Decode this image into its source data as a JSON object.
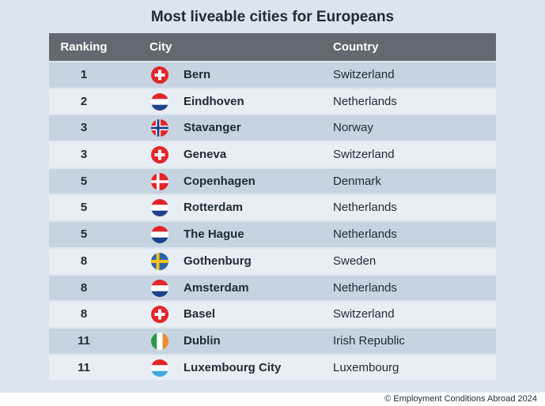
{
  "title": "Most liveable cities for Europeans",
  "headers": {
    "ranking": "Ranking",
    "city": "City",
    "country": "Country"
  },
  "rows": [
    {
      "rank": "1",
      "city": "Bern",
      "country": "Switzerland",
      "flag": "switzerland-flag-icon"
    },
    {
      "rank": "2",
      "city": "Eindhoven",
      "country": "Netherlands",
      "flag": "netherlands-flag-icon"
    },
    {
      "rank": "3",
      "city": "Stavanger",
      "country": "Norway",
      "flag": "norway-flag-icon"
    },
    {
      "rank": "3",
      "city": "Geneva",
      "country": "Switzerland",
      "flag": "switzerland-flag-icon"
    },
    {
      "rank": "5",
      "city": "Copenhagen",
      "country": "Denmark",
      "flag": "denmark-flag-icon"
    },
    {
      "rank": "5",
      "city": "Rotterdam",
      "country": "Netherlands",
      "flag": "netherlands-flag-icon"
    },
    {
      "rank": "5",
      "city": "The Hague",
      "country": "Netherlands",
      "flag": "netherlands-flag-icon"
    },
    {
      "rank": "8",
      "city": "Gothenburg",
      "country": "Sweden",
      "flag": "sweden-flag-icon"
    },
    {
      "rank": "8",
      "city": "Amsterdam",
      "country": "Netherlands",
      "flag": "netherlands-flag-icon"
    },
    {
      "rank": "8",
      "city": "Basel",
      "country": "Switzerland",
      "flag": "switzerland-flag-icon"
    },
    {
      "rank": "11",
      "city": "Dublin",
      "country": "Irish Republic",
      "flag": "ireland-flag-icon"
    },
    {
      "rank": "11",
      "city": "Luxembourg City",
      "country": "Luxembourg",
      "flag": "luxembourg-flag-icon"
    }
  ],
  "credit": "© Employment Conditions Abroad 2024",
  "colors": {
    "header_bg": "#636970",
    "row_odd": "#c6d4e2",
    "row_even": "#e8eef4",
    "page_bg": "#dce5ee"
  }
}
